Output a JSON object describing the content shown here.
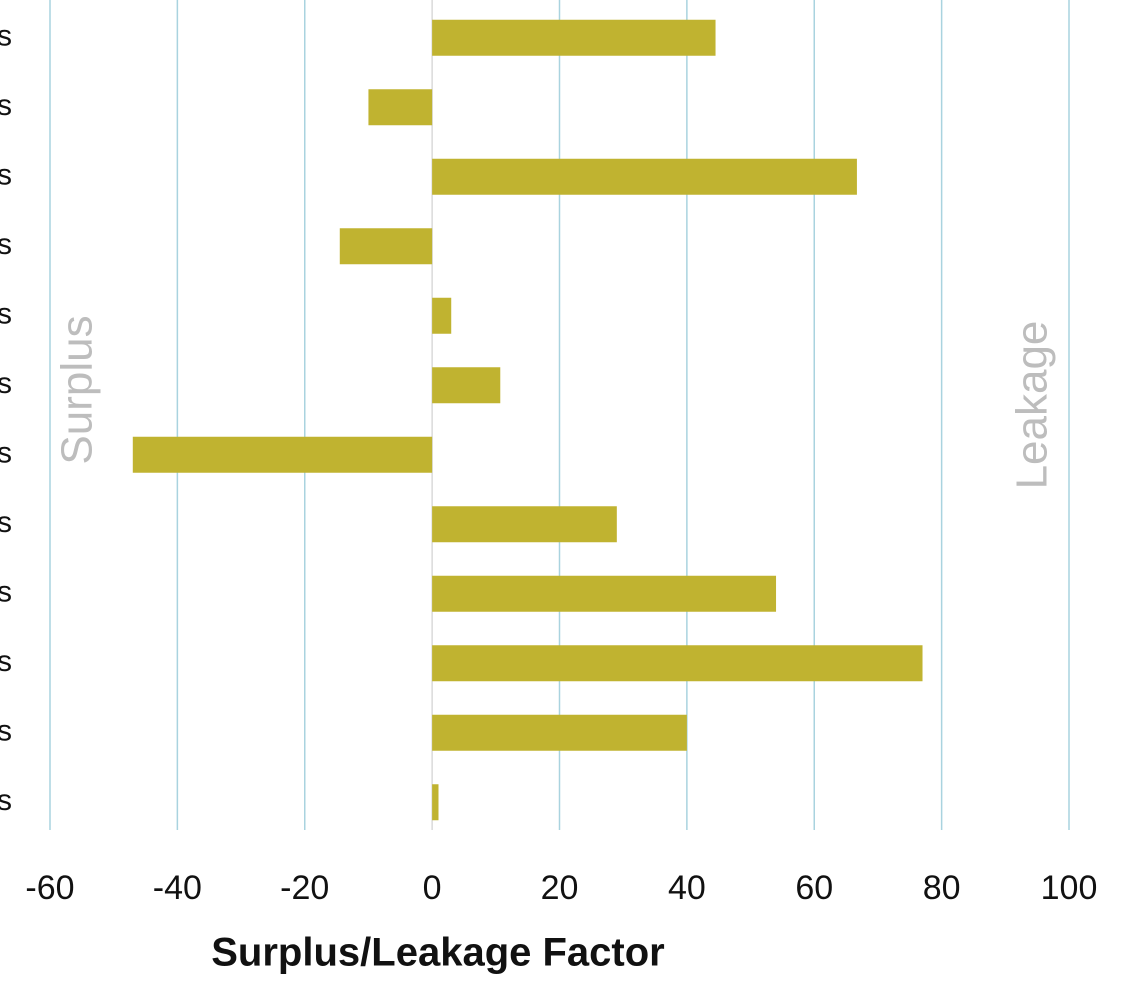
{
  "chart_data": {
    "type": "hbar",
    "xlabel": "Surplus/Leakage Factor",
    "annotations": [
      "Surplus",
      "Leakage"
    ],
    "categories": [
      "s",
      "s",
      "s",
      "s",
      "s",
      "s",
      "s",
      "s",
      "s",
      "s",
      "s",
      "s"
    ],
    "values": [
      44.5,
      -10,
      66.7,
      -14.5,
      3,
      10.7,
      -47,
      29,
      54,
      77,
      40,
      1
    ],
    "color": "#c0b330",
    "xlim": [
      -60,
      100
    ],
    "xticks": [
      -60,
      -40,
      -20,
      0,
      20,
      40,
      60,
      80,
      100
    ],
    "grid": true
  }
}
